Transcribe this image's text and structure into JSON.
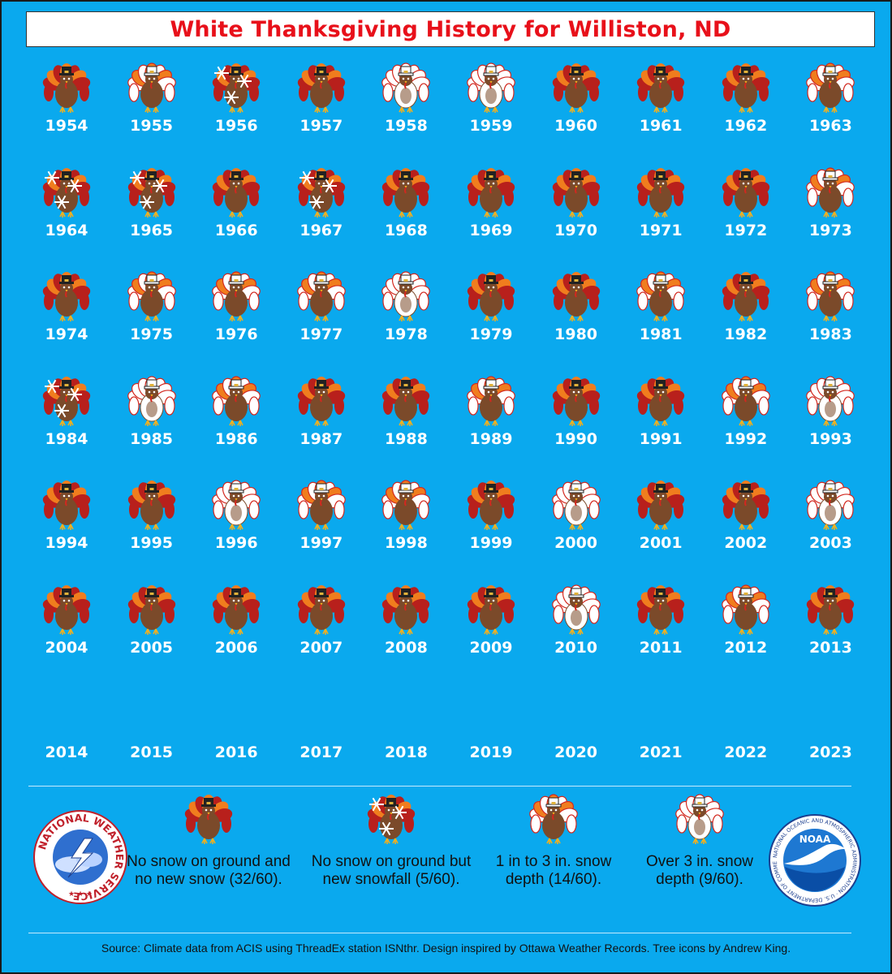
{
  "title": "White Thanksgiving History for Williston, ND",
  "colors": {
    "background": "#0aa9ee",
    "title": "#e8101a",
    "turkey_body": "#7b4a2a",
    "feather_orange": "#f07d1e",
    "feather_red": "#b8201c",
    "snow": "#ffffff"
  },
  "categories": {
    "none": "No snow on ground and no new snow (32/60).",
    "snowfall": "No snow on ground but new snowfall (5/60).",
    "light": "1 in to 3 in. snow depth (14/60).",
    "heavy": "Over 3 in. snow depth (9/60)."
  },
  "years": [
    {
      "year": "1954",
      "category": "none"
    },
    {
      "year": "1955",
      "category": "light"
    },
    {
      "year": "1956",
      "category": "snowfall"
    },
    {
      "year": "1957",
      "category": "none"
    },
    {
      "year": "1958",
      "category": "heavy"
    },
    {
      "year": "1959",
      "category": "heavy"
    },
    {
      "year": "1960",
      "category": "none"
    },
    {
      "year": "1961",
      "category": "none"
    },
    {
      "year": "1962",
      "category": "none"
    },
    {
      "year": "1963",
      "category": "light"
    },
    {
      "year": "1964",
      "category": "snowfall"
    },
    {
      "year": "1965",
      "category": "snowfall"
    },
    {
      "year": "1966",
      "category": "none"
    },
    {
      "year": "1967",
      "category": "snowfall"
    },
    {
      "year": "1968",
      "category": "none"
    },
    {
      "year": "1969",
      "category": "none"
    },
    {
      "year": "1970",
      "category": "none"
    },
    {
      "year": "1971",
      "category": "none"
    },
    {
      "year": "1972",
      "category": "none"
    },
    {
      "year": "1973",
      "category": "light"
    },
    {
      "year": "1974",
      "category": "none"
    },
    {
      "year": "1975",
      "category": "light"
    },
    {
      "year": "1976",
      "category": "light"
    },
    {
      "year": "1977",
      "category": "light"
    },
    {
      "year": "1978",
      "category": "heavy"
    },
    {
      "year": "1979",
      "category": "none"
    },
    {
      "year": "1980",
      "category": "none"
    },
    {
      "year": "1981",
      "category": "light"
    },
    {
      "year": "1982",
      "category": "none"
    },
    {
      "year": "1983",
      "category": "light"
    },
    {
      "year": "1984",
      "category": "snowfall"
    },
    {
      "year": "1985",
      "category": "heavy"
    },
    {
      "year": "1986",
      "category": "light"
    },
    {
      "year": "1987",
      "category": "none"
    },
    {
      "year": "1988",
      "category": "none"
    },
    {
      "year": "1989",
      "category": "light"
    },
    {
      "year": "1990",
      "category": "none"
    },
    {
      "year": "1991",
      "category": "none"
    },
    {
      "year": "1992",
      "category": "light"
    },
    {
      "year": "1993",
      "category": "heavy"
    },
    {
      "year": "1994",
      "category": "none"
    },
    {
      "year": "1995",
      "category": "none"
    },
    {
      "year": "1996",
      "category": "heavy"
    },
    {
      "year": "1997",
      "category": "light"
    },
    {
      "year": "1998",
      "category": "light"
    },
    {
      "year": "1999",
      "category": "none"
    },
    {
      "year": "2000",
      "category": "heavy"
    },
    {
      "year": "2001",
      "category": "none"
    },
    {
      "year": "2002",
      "category": "none"
    },
    {
      "year": "2003",
      "category": "heavy"
    },
    {
      "year": "2004",
      "category": "none"
    },
    {
      "year": "2005",
      "category": "none"
    },
    {
      "year": "2006",
      "category": "none"
    },
    {
      "year": "2007",
      "category": "none"
    },
    {
      "year": "2008",
      "category": "none"
    },
    {
      "year": "2009",
      "category": "none"
    },
    {
      "year": "2010",
      "category": "heavy"
    },
    {
      "year": "2011",
      "category": "none"
    },
    {
      "year": "2012",
      "category": "light"
    },
    {
      "year": "2013",
      "category": "none"
    },
    {
      "year": "2014",
      "category": ""
    },
    {
      "year": "2015",
      "category": ""
    },
    {
      "year": "2016",
      "category": ""
    },
    {
      "year": "2017",
      "category": ""
    },
    {
      "year": "2018",
      "category": ""
    },
    {
      "year": "2019",
      "category": ""
    },
    {
      "year": "2020",
      "category": ""
    },
    {
      "year": "2021",
      "category": ""
    },
    {
      "year": "2022",
      "category": ""
    },
    {
      "year": "2023",
      "category": ""
    }
  ],
  "logos": {
    "nws": {
      "icon": "nws-logo-icon",
      "text": "NATIONAL WEATHER SERVICE"
    },
    "noaa": {
      "icon": "noaa-logo-icon",
      "text": "NOAA",
      "ring_text": "NATIONAL OCEANIC AND ATMOSPHERIC ADMINISTRATION · U.S. DEPARTMENT OF COMMERCE"
    }
  },
  "source": "Source: Climate data from ACIS using ThreadEx station ISNthr. Design inspired by Ottawa Weather Records. Tree icons by Andrew King."
}
